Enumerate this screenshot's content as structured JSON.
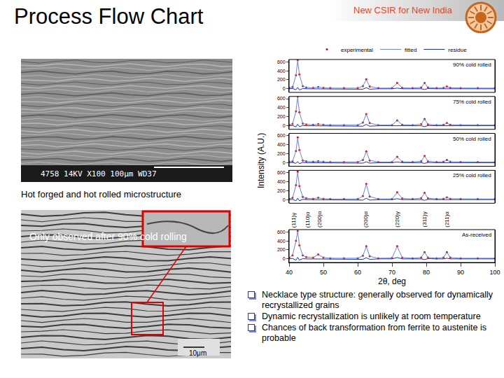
{
  "header": {
    "title": "Process Flow Chart",
    "tagline": "New CSIR for New India"
  },
  "micrograph_top": {
    "caption": "4758  14KV  X100  100μm  WD37",
    "label": "Hot forged and hot rolled microstructure"
  },
  "micrograph_bottom": {
    "label": "Only observed after 90% cold rolling",
    "scale": "10μm"
  },
  "bullets": [
    "Necklace type structure: generally observed for dynamically recrystallized grains",
    "Dynamic recrystallization is unlikely at room temperature",
    "Chances of back transformation from ferrite to austenite is probable"
  ],
  "chart_data": {
    "type": "line",
    "x_label": "2θ, deg",
    "y_label": "Intensity (A.U.)",
    "xlim": [
      40,
      100
    ],
    "xticks": [
      40,
      50,
      60,
      70,
      80,
      90,
      100
    ],
    "ylim": [
      -80,
      650
    ],
    "yticks": [
      0,
      200,
      400,
      600
    ],
    "legend": "top",
    "x": [
      40,
      41,
      42,
      42.5,
      43,
      44,
      45,
      47,
      48.5,
      50,
      52,
      56,
      60,
      61.5,
      62.5,
      63.5,
      66,
      70,
      71.5,
      73,
      76,
      78.5,
      79.5,
      80.5,
      83,
      85,
      86,
      87,
      90,
      95,
      100
    ],
    "peak_labels": [
      {
        "text": "(111)γ",
        "x": 41.5
      },
      {
        "text": "(110)α",
        "x": 45.3
      },
      {
        "text": "(200)α",
        "x": 49
      },
      {
        "text": "(200)α",
        "x": 62.5
      },
      {
        "text": "(220)γ",
        "x": 71.5
      },
      {
        "text": "(311)γ",
        "x": 79.5
      },
      {
        "text": "(211)α",
        "x": 86
      }
    ],
    "panels": [
      {
        "title": "90% cold rolled",
        "series": [
          {
            "name": "experimental",
            "type": "scatter",
            "marker": "circle",
            "color": "#e00000",
            "values": [
              20,
              40,
              300,
              640,
              320,
              60,
              30,
              20,
              40,
              20,
              15,
              15,
              15,
              60,
              210,
              50,
              15,
              15,
              130,
              20,
              15,
              30,
              130,
              30,
              15,
              20,
              50,
              20,
              15,
              15,
              15
            ]
          },
          {
            "name": "fitted",
            "type": "line",
            "line_style": "solid",
            "color": "#6b82d8",
            "values": [
              20,
              38,
              295,
              630,
              315,
              60,
              30,
              20,
              38,
              20,
              15,
              15,
              15,
              58,
              205,
              50,
              15,
              15,
              128,
              20,
              15,
              30,
              128,
              30,
              15,
              20,
              48,
              20,
              15,
              15,
              15
            ]
          },
          {
            "name": "residue",
            "type": "line",
            "line_style": "solid",
            "color": "#1030c8",
            "values": [
              0,
              5,
              -20,
              30,
              -25,
              5,
              0,
              0,
              -5,
              0,
              0,
              0,
              0,
              -10,
              25,
              -10,
              0,
              0,
              15,
              0,
              0,
              0,
              -15,
              5,
              0,
              0,
              5,
              0,
              0,
              0,
              0
            ]
          }
        ]
      },
      {
        "title": "75% cold rolled",
        "series": [
          {
            "name": "experimental",
            "type": "scatter",
            "marker": "circle",
            "color": "#e00000",
            "values": [
              20,
              40,
              320,
              650,
              300,
              50,
              30,
              20,
              35,
              20,
              15,
              15,
              15,
              70,
              260,
              60,
              15,
              15,
              120,
              20,
              15,
              35,
              150,
              30,
              15,
              20,
              60,
              20,
              15,
              15,
              15
            ]
          },
          {
            "name": "fitted",
            "type": "line",
            "line_style": "solid",
            "color": "#6b82d8",
            "values": [
              20,
              38,
              315,
              640,
              295,
              50,
              30,
              20,
              34,
              20,
              15,
              15,
              15,
              68,
              255,
              58,
              15,
              15,
              118,
              20,
              15,
              34,
              148,
              30,
              15,
              20,
              58,
              20,
              15,
              15,
              15
            ]
          },
          {
            "name": "residue",
            "type": "line",
            "line_style": "solid",
            "color": "#1030c8",
            "values": [
              0,
              5,
              -25,
              35,
              -20,
              5,
              0,
              0,
              -5,
              0,
              0,
              0,
              0,
              -10,
              30,
              -10,
              0,
              0,
              10,
              0,
              0,
              0,
              -20,
              5,
              0,
              0,
              5,
              0,
              0,
              0,
              0
            ]
          }
        ]
      },
      {
        "title": "50% cold rolled",
        "series": [
          {
            "name": "experimental",
            "type": "scatter",
            "marker": "circle",
            "color": "#e00000",
            "values": [
              20,
              30,
              260,
              560,
              280,
              50,
              30,
              20,
              35,
              20,
              15,
              15,
              15,
              60,
              250,
              50,
              15,
              15,
              130,
              20,
              15,
              35,
              150,
              30,
              15,
              20,
              60,
              20,
              15,
              15,
              15
            ]
          },
          {
            "name": "fitted",
            "type": "line",
            "line_style": "solid",
            "color": "#6b82d8",
            "values": [
              20,
              30,
              255,
              552,
              276,
              50,
              30,
              20,
              34,
              20,
              15,
              15,
              15,
              58,
              246,
              50,
              15,
              15,
              128,
              20,
              15,
              34,
              147,
              30,
              15,
              20,
              58,
              20,
              15,
              15,
              15
            ]
          },
          {
            "name": "residue",
            "type": "line",
            "line_style": "solid",
            "color": "#1030c8",
            "values": [
              0,
              5,
              -15,
              25,
              -20,
              5,
              0,
              0,
              -5,
              0,
              0,
              0,
              0,
              -10,
              20,
              -10,
              0,
              0,
              15,
              0,
              0,
              0,
              -15,
              5,
              0,
              0,
              5,
              0,
              0,
              0,
              0
            ]
          }
        ]
      },
      {
        "title": "25% cold rolled",
        "series": [
          {
            "name": "experimental",
            "type": "scatter",
            "marker": "circle",
            "color": "#e00000",
            "values": [
              20,
              40,
              320,
              620,
              300,
              60,
              30,
              20,
              40,
              20,
              15,
              15,
              15,
              80,
              350,
              70,
              15,
              15,
              160,
              25,
              15,
              35,
              150,
              30,
              15,
              20,
              50,
              20,
              15,
              15,
              15
            ]
          },
          {
            "name": "fitted",
            "type": "line",
            "line_style": "solid",
            "color": "#6b82d8",
            "values": [
              20,
              38,
              314,
              610,
              296,
              60,
              30,
              20,
              38,
              20,
              15,
              15,
              15,
              78,
              342,
              68,
              15,
              15,
              156,
              25,
              15,
              34,
              147,
              30,
              15,
              20,
              48,
              20,
              15,
              15,
              15
            ]
          },
          {
            "name": "residue",
            "type": "line",
            "line_style": "solid",
            "color": "#1030c8",
            "values": [
              0,
              5,
              -25,
              30,
              -25,
              5,
              0,
              0,
              -5,
              0,
              0,
              0,
              0,
              -10,
              30,
              -10,
              0,
              0,
              20,
              0,
              0,
              0,
              -15,
              5,
              0,
              0,
              5,
              0,
              0,
              0,
              0
            ]
          }
        ]
      },
      {
        "title": "As-received",
        "series": [
          {
            "name": "experimental",
            "type": "scatter",
            "marker": "circle",
            "color": "#e00000",
            "values": [
              20,
              80,
              400,
              620,
              300,
              80,
              40,
              30,
              100,
              30,
              15,
              15,
              15,
              70,
              280,
              60,
              15,
              20,
              280,
              30,
              15,
              30,
              150,
              30,
              15,
              30,
              150,
              30,
              15,
              15,
              15
            ]
          },
          {
            "name": "fitted",
            "type": "line",
            "line_style": "solid",
            "color": "#6b82d8",
            "values": [
              20,
              78,
              392,
              612,
              296,
              78,
              40,
              30,
              97,
              30,
              15,
              15,
              15,
              68,
              275,
              58,
              15,
              20,
              274,
              30,
              15,
              30,
              147,
              30,
              15,
              30,
              147,
              30,
              15,
              15,
              15
            ]
          },
          {
            "name": "residue",
            "type": "line",
            "line_style": "solid",
            "color": "#1030c8",
            "values": [
              0,
              10,
              -30,
              35,
              -25,
              5,
              0,
              0,
              -10,
              0,
              0,
              0,
              0,
              -10,
              25,
              -10,
              0,
              0,
              30,
              0,
              0,
              0,
              -15,
              5,
              0,
              0,
              15,
              0,
              0,
              0,
              0
            ]
          }
        ]
      }
    ]
  }
}
